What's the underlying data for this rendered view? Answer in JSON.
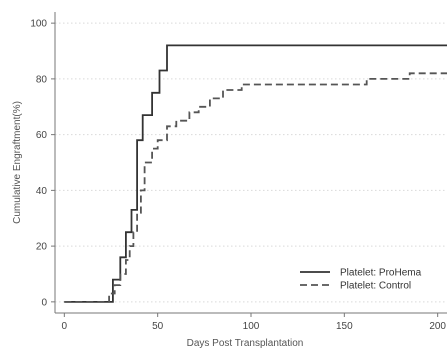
{
  "chart_data": {
    "type": "line",
    "subtype": "step",
    "xlabel": "Days Post Transplantation",
    "ylabel": "Cumulative Engraftment(%)",
    "xlim": [
      -5,
      205
    ],
    "ylim": [
      -4,
      104
    ],
    "xticks": [
      0,
      50,
      100,
      150,
      200
    ],
    "yticks": [
      0,
      20,
      40,
      60,
      80,
      100
    ],
    "grid": "horizontal-dotted",
    "legend_position": "bottom-right",
    "series": [
      {
        "name": "Platelet: ProHema",
        "style": "solid",
        "color": "#333333",
        "x": [
          0,
          26,
          26,
          30,
          30,
          33,
          33,
          36,
          36,
          39,
          39,
          42,
          42,
          47,
          47,
          51,
          51,
          55,
          55,
          60,
          60,
          205
        ],
        "y": [
          0,
          0,
          8,
          8,
          16,
          16,
          25,
          25,
          33,
          33,
          58,
          58,
          67,
          67,
          75,
          75,
          83,
          83,
          92,
          92,
          92,
          92
        ]
      },
      {
        "name": "Platelet: Control",
        "style": "dashed",
        "color": "#555555",
        "x": [
          0,
          24,
          24,
          27,
          27,
          30,
          30,
          33,
          33,
          35,
          35,
          37,
          37,
          39,
          39,
          41,
          41,
          43,
          43,
          47,
          47,
          50,
          50,
          55,
          55,
          60,
          60,
          67,
          67,
          72,
          72,
          78,
          78,
          85,
          85,
          95,
          95,
          162,
          162,
          185,
          185,
          205
        ],
        "y": [
          0,
          0,
          3,
          3,
          6,
          6,
          10,
          10,
          15,
          15,
          20,
          20,
          25,
          25,
          32,
          32,
          40,
          40,
          50,
          50,
          55,
          55,
          58,
          58,
          63,
          63,
          65,
          65,
          68,
          68,
          70,
          70,
          73,
          73,
          76,
          76,
          78,
          78,
          80,
          80,
          82,
          82
        ]
      }
    ]
  }
}
